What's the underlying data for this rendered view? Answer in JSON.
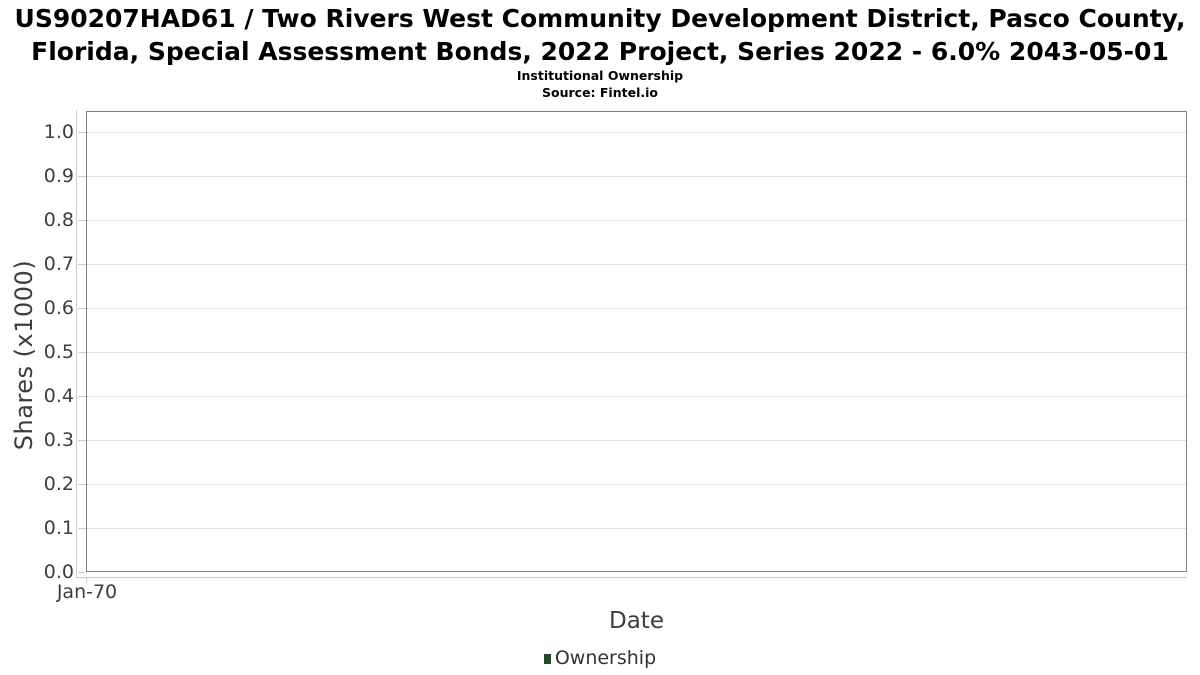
{
  "header": {
    "title": "US90207HAD61 / Two Rivers West Community Development District, Pasco County, Florida, Special Assessment Bonds, 2022 Project, Series 2022 - 6.0% 2043-05-01",
    "subtitle": "Institutional Ownership",
    "source": "Source: Fintel.io"
  },
  "chart_data": {
    "type": "line",
    "title": "US90207HAD61 / Two Rivers West Community Development District, Pasco County, Florida, Special Assessment Bonds, 2022 Project, Series 2022 - 6.0% 2043-05-01",
    "subtitle": "Institutional Ownership",
    "source": "Source: Fintel.io",
    "xlabel": "Date",
    "ylabel": "Shares (x1000)",
    "ylim": [
      0.0,
      1.05
    ],
    "yticks": [
      0.0,
      0.1,
      0.2,
      0.3,
      0.4,
      0.5,
      0.6,
      0.7,
      0.8,
      0.9,
      1.0
    ],
    "ytick_labels": [
      "0.0",
      "0.1",
      "0.2",
      "0.3",
      "0.4",
      "0.5",
      "0.6",
      "0.7",
      "0.8",
      "0.9",
      "1.0"
    ],
    "xtick_labels": [
      "Jan-70"
    ],
    "grid": "horizontal",
    "legend_position": "bottom",
    "series": [
      {
        "name": "Ownership",
        "color": "#1e4d28",
        "x": [],
        "values": []
      }
    ]
  },
  "colors": {
    "background": "#ffffff",
    "title_text": "#000000",
    "axis_text": "#3d3d3d",
    "plot_border": "#7f7f7f",
    "gridline": "#e2e2e2",
    "axis_line": "#cccccc",
    "legend_marker": "#1e4d28"
  }
}
